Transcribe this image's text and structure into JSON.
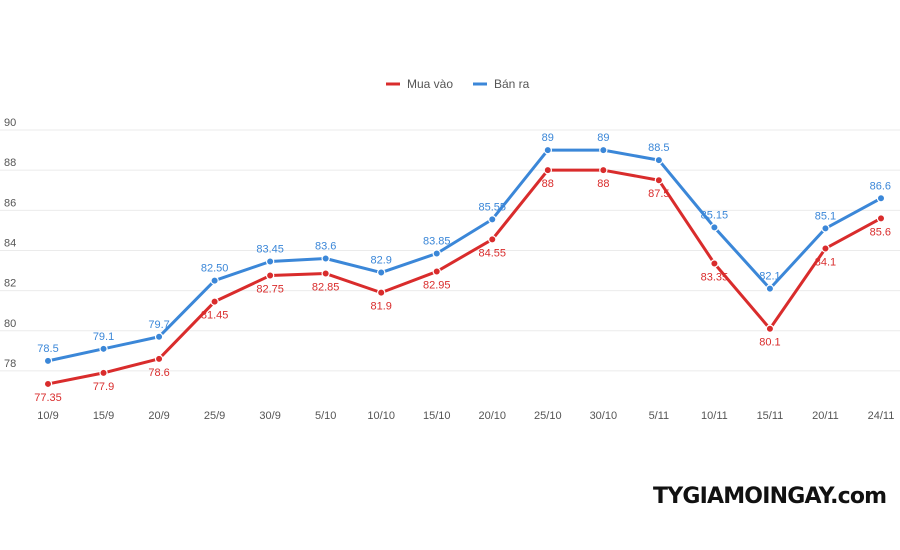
{
  "chart_data": {
    "type": "line",
    "title": "",
    "xlabel": "",
    "ylabel": "",
    "categories": [
      "10/9",
      "15/9",
      "20/9",
      "25/9",
      "30/9",
      "5/10",
      "10/10",
      "15/10",
      "20/10",
      "25/10",
      "30/10",
      "5/11",
      "10/11",
      "15/11",
      "20/11",
      "24/11"
    ],
    "yticks": [
      78,
      80,
      82,
      84,
      86,
      88,
      90
    ],
    "ylim": [
      76.5,
      90.5
    ],
    "grid": true,
    "legend_position": "top-center",
    "series": [
      {
        "name": "Mua vào",
        "color": "#d92c2c",
        "values": [
          77.35,
          77.9,
          78.6,
          81.45,
          82.75,
          82.85,
          81.9,
          82.95,
          84.55,
          88,
          88,
          87.5,
          83.35,
          80.1,
          84.1,
          85.6
        ],
        "labels": [
          "77.35",
          "77.9",
          "78.6",
          "81.45",
          "82.75",
          "82.85",
          "81.9",
          "82.95",
          "84.55",
          "88",
          "88",
          "87.5",
          "83.35",
          "80.1",
          "84.1",
          "85.6"
        ]
      },
      {
        "name": "Bán ra",
        "color": "#3b87d8",
        "values": [
          78.5,
          79.1,
          79.7,
          82.5,
          83.45,
          83.6,
          82.9,
          83.85,
          85.55,
          89,
          89,
          88.5,
          85.15,
          82.1,
          85.1,
          86.6
        ],
        "labels": [
          "78.5",
          "79.1",
          "79.7",
          "82.50",
          "83.45",
          "83.6",
          "82.9",
          "83.85",
          "85.55",
          "89",
          "89",
          "88.5",
          "85.15",
          "82.1",
          "85.1",
          "86.6"
        ]
      }
    ]
  },
  "brand": {
    "text": "TYGIAMOINGAY.com"
  }
}
